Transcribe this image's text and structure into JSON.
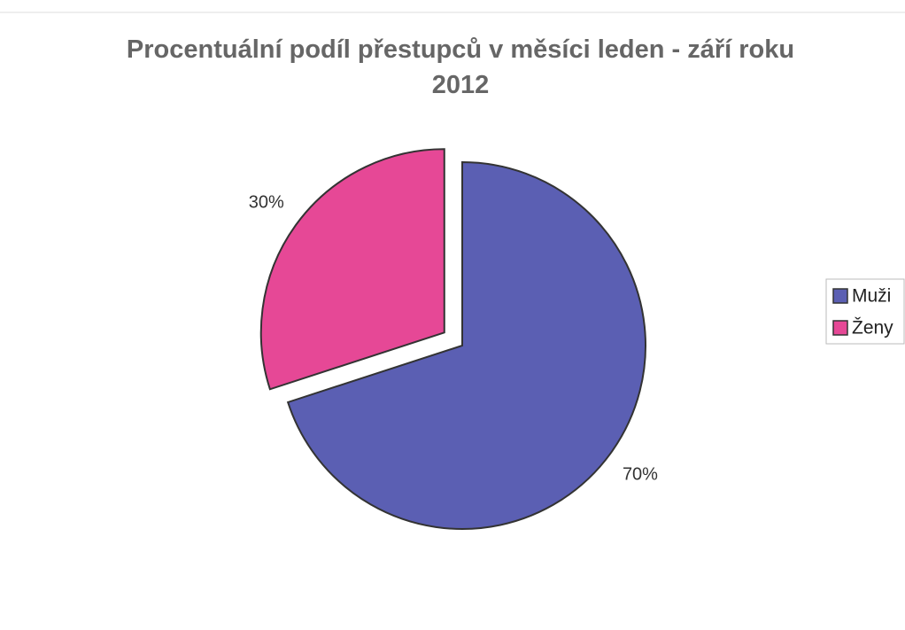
{
  "chart_data": {
    "type": "pie",
    "title": "Procentuální podíl přestupců v měsíci leden - září roku 2012",
    "categories": [
      "Muži",
      "Ženy"
    ],
    "values": [
      70,
      30
    ],
    "value_labels": [
      "70%",
      "30%"
    ],
    "colors": [
      "#5b5fb3",
      "#e64896"
    ],
    "legend": "right"
  }
}
